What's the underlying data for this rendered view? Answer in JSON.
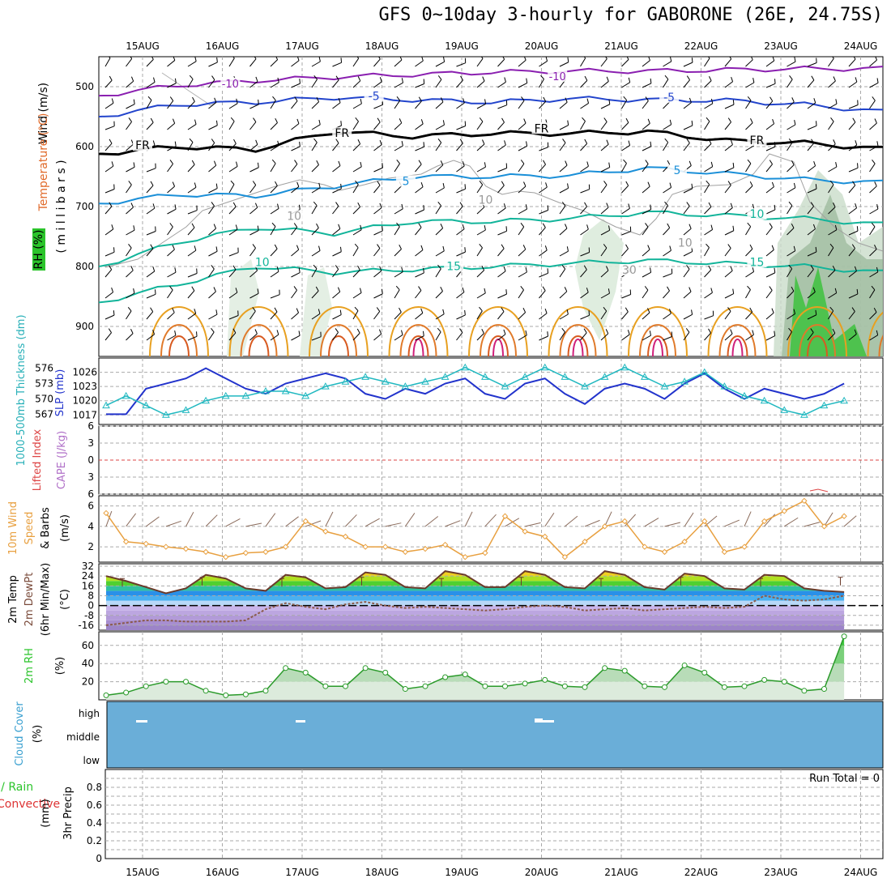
{
  "title": "GFS 0~10day 3-hourly for GABORONE (26E, 24.75S)",
  "dates": [
    "15AUG",
    "16AUG",
    "17AUG",
    "18AUG",
    "19AUG",
    "20AUG",
    "21AUG",
    "22AUG",
    "23AUG",
    "24AUG"
  ],
  "colors": {
    "temp_purple": "#8a1fb0",
    "temp_blue": "#2244cc",
    "temp_black": "#000000",
    "temp_sky": "#1a8fd8",
    "temp_teal": "#12b49a",
    "temp_orange": "#e8a020",
    "rh_green": "#2bc42b",
    "cloud_blue": "#6aaed8",
    "thickness": "#2233cc",
    "slp": "#20b8c0",
    "wind10": "#e8a040",
    "lifted": "#dd4444"
  },
  "chart_data": [
    {
      "type": "contour",
      "panel": "upper-air",
      "ylabels": {
        "rh": "RH (%)",
        "temp": "Temperature (°C)",
        "wind": "Wind (m/s)",
        "axis": "( m i l l i b a r s )"
      },
      "ylim": [
        950,
        450
      ],
      "yticks": [
        500,
        600,
        700,
        800,
        900
      ],
      "contour_labels": [
        {
          "text": "-10",
          "level": -10,
          "day": 1.1,
          "p": 497
        },
        {
          "text": "-10",
          "level": -10,
          "day": 5.2,
          "p": 485
        },
        {
          "text": "-5",
          "level": -5,
          "day": 2.9,
          "p": 518
        },
        {
          "text": "-5",
          "level": -5,
          "day": 6.6,
          "p": 520
        },
        {
          "text": "FR",
          "level": 0,
          "day": 0.0,
          "p": 600
        },
        {
          "text": "FR",
          "level": 0,
          "day": 2.5,
          "p": 580
        },
        {
          "text": "FR",
          "level": 0,
          "day": 5.0,
          "p": 572
        },
        {
          "text": "FR",
          "level": 0,
          "day": 7.7,
          "p": 592
        },
        {
          "text": "5",
          "level": 5,
          "day": 3.3,
          "p": 660
        },
        {
          "text": "5",
          "level": 5,
          "day": 6.7,
          "p": 642
        },
        {
          "text": "10",
          "level": 10,
          "day": 1.5,
          "p": 795
        },
        {
          "text": "10",
          "level": 10,
          "day": 7.7,
          "p": 715
        },
        {
          "text": "15",
          "level": 15,
          "day": 3.9,
          "p": 802
        },
        {
          "text": "15",
          "level": 15,
          "day": 7.7,
          "p": 795
        },
        {
          "text": "10",
          "level": 10,
          "day": 4.3,
          "p": 691
        },
        {
          "text": "10",
          "level": 10,
          "day": 1.9,
          "p": 718
        },
        {
          "text": "30",
          "level": 30,
          "day": 6.1,
          "p": 808
        },
        {
          "text": "10",
          "level": 10,
          "day": 6.8,
          "p": 763
        }
      ],
      "temperature_isotherms": [
        {
          "level": -10,
          "p": [
            515,
            498,
            490,
            484,
            480,
            476,
            474,
            474,
            472,
            470,
            470
          ]
        },
        {
          "level": -5,
          "p": [
            550,
            530,
            526,
            518,
            522,
            526,
            520,
            522,
            523,
            530,
            542
          ]
        },
        {
          "level": 0,
          "p": [
            612,
            600,
            605,
            575,
            583,
            578,
            578,
            575,
            590,
            594,
            604
          ]
        },
        {
          "level": 5,
          "p": [
            695,
            680,
            682,
            666,
            650,
            650,
            648,
            636,
            645,
            655,
            660
          ]
        },
        {
          "level": 10,
          "p": [
            800,
            760,
            735,
            745,
            725,
            725,
            720,
            710,
            715,
            720,
            730
          ]
        },
        {
          "level": 15,
          "p": [
            860,
            830,
            800,
            810,
            805,
            800,
            795,
            790,
            795,
            800,
            810
          ]
        }
      ]
    },
    {
      "type": "line",
      "panel": "thickness-slp",
      "ylabels": {
        "thick": "1000-500mb Thickness (dm)",
        "slp": "SLP (mb)"
      },
      "ylim_left": [
        565,
        578
      ],
      "yticks_left": [
        567,
        570,
        573,
        576
      ],
      "ylim_right": [
        1015,
        1029
      ],
      "yticks_right": [
        1017,
        1020,
        1023,
        1026
      ],
      "x_day": [
        0,
        0.25,
        0.5,
        0.75,
        1,
        1.25,
        1.5,
        1.75,
        2,
        2.25,
        2.5,
        2.75,
        3,
        3.25,
        3.5,
        3.75,
        4,
        4.25,
        4.5,
        4.75,
        5,
        5.25,
        5.5,
        5.75,
        6,
        6.25,
        6.5,
        6.75,
        7,
        7.25,
        7.5,
        7.75,
        8,
        8.25,
        8.5,
        8.75,
        9,
        9.25
      ],
      "series": [
        {
          "name": "",
          "axis": "left",
          "values": [
            567,
            567,
            572,
            573,
            574,
            576,
            574,
            572,
            571,
            573,
            574,
            575,
            574,
            571,
            570,
            572,
            571,
            573,
            574,
            571,
            570,
            573,
            574,
            571,
            569,
            572,
            573,
            572,
            570,
            573,
            575,
            572,
            570,
            572,
            571,
            570,
            571,
            573
          ]
        },
        {
          "name": "",
          "axis": "right",
          "values": [
            1019,
            1021,
            1019,
            1017,
            1018,
            1020,
            1021,
            1021,
            1022,
            1022,
            1021,
            1023,
            1024,
            1025,
            1024,
            1023,
            1024,
            1025,
            1027,
            1025,
            1023,
            1025,
            1027,
            1025,
            1023,
            1025,
            1027,
            1025,
            1023,
            1024,
            1026,
            1023,
            1021,
            1020,
            1018,
            1017,
            1019,
            1020
          ]
        }
      ]
    },
    {
      "type": "line",
      "panel": "cape",
      "ylabels": {
        "li": "Lifted Index",
        "cape": "CAPE (J/kg)"
      },
      "ylim": [
        -6,
        6
      ],
      "yticks": [
        -6,
        -3,
        0,
        3,
        6
      ],
      "tick_labels": [
        "6",
        "3",
        "0",
        "3",
        "6"
      ]
    },
    {
      "type": "line",
      "panel": "wind10",
      "ylabels": {
        "name": "10m Wind",
        "speed": "Speed",
        "barbs": "& Barbs",
        "unit": "(m/s)"
      },
      "ylim": [
        0.5,
        7
      ],
      "yticks": [
        2,
        4,
        6
      ],
      "x_day": [
        0,
        0.25,
        0.5,
        0.75,
        1,
        1.25,
        1.5,
        1.75,
        2,
        2.25,
        2.5,
        2.75,
        3,
        3.25,
        3.5,
        3.75,
        4,
        4.25,
        4.5,
        4.75,
        5,
        5.25,
        5.5,
        5.75,
        6,
        6.25,
        6.5,
        6.75,
        7,
        7.25,
        7.5,
        7.75,
        8,
        8.25,
        8.5,
        8.75,
        9,
        9.25
      ],
      "values": [
        5.3,
        2.5,
        2.3,
        2.0,
        1.8,
        1.5,
        1.0,
        1.4,
        1.5,
        2.0,
        4.5,
        3.5,
        3.0,
        2.0,
        2.0,
        1.5,
        1.8,
        2.2,
        1.0,
        1.4,
        5.0,
        3.5,
        3.0,
        1.0,
        2.5,
        4.0,
        4.5,
        2.0,
        1.5,
        2.5,
        4.5,
        1.5,
        2.0,
        4.5,
        5.5,
        6.5,
        4.0,
        5.0
      ]
    },
    {
      "type": "area",
      "panel": "temp2m",
      "ylabels": {
        "t": "2m Temp",
        "td": "2m DewPt",
        "mm": "(6hr Min/Max)",
        "unit": "(°C)"
      },
      "ylim": [
        -20,
        34
      ],
      "yticks": [
        -16,
        -8,
        0,
        8,
        16,
        24,
        32
      ],
      "x_day": [
        0,
        0.25,
        0.5,
        0.75,
        1,
        1.25,
        1.5,
        1.75,
        2,
        2.25,
        2.5,
        2.75,
        3,
        3.25,
        3.5,
        3.75,
        4,
        4.25,
        4.5,
        4.75,
        5,
        5.25,
        5.5,
        5.75,
        6,
        6.25,
        6.5,
        6.75,
        7,
        7.25,
        7.5,
        7.75,
        8,
        8.25,
        8.5,
        8.75,
        9,
        9.25
      ],
      "temp": [
        24,
        20,
        15,
        10,
        14,
        25,
        22,
        14,
        12,
        25,
        23,
        14,
        15,
        27,
        25,
        15,
        14,
        28,
        25,
        15,
        15,
        28,
        25,
        15,
        14,
        28,
        25,
        15,
        13,
        26,
        24,
        14,
        13,
        25,
        24,
        14,
        12,
        11
      ],
      "dewpt": [
        -16,
        -14,
        -12,
        -12,
        -13,
        -13,
        -13,
        -12,
        -3,
        2,
        -1,
        -3,
        1,
        3,
        0,
        -2,
        -1,
        -2,
        -3,
        -4,
        -3,
        -1,
        0,
        -1,
        -4,
        -3,
        -2,
        -4,
        -3,
        -2,
        -1,
        -2,
        -1,
        8,
        5,
        4,
        5,
        8
      ]
    },
    {
      "type": "area",
      "panel": "rh2m",
      "ylabels": {
        "name": "2m RH",
        "unit": "(%)"
      },
      "ylim": [
        0,
        75
      ],
      "yticks": [
        20,
        40,
        60
      ],
      "x_day": [
        0,
        0.25,
        0.5,
        0.75,
        1,
        1.25,
        1.5,
        1.75,
        2,
        2.25,
        2.5,
        2.75,
        3,
        3.25,
        3.5,
        3.75,
        4,
        4.25,
        4.5,
        4.75,
        5,
        5.25,
        5.5,
        5.75,
        6,
        6.25,
        6.5,
        6.75,
        7,
        7.25,
        7.5,
        7.75,
        8,
        8.25,
        8.5,
        8.75,
        9,
        9.25
      ],
      "values": [
        5,
        8,
        15,
        20,
        20,
        10,
        5,
        6,
        10,
        35,
        30,
        15,
        15,
        35,
        30,
        12,
        15,
        25,
        28,
        15,
        15,
        18,
        22,
        15,
        14,
        35,
        32,
        15,
        14,
        38,
        30,
        14,
        15,
        22,
        20,
        10,
        12,
        70
      ]
    },
    {
      "type": "heatmap",
      "panel": "cloud",
      "ylabels": {
        "name": "Cloud Cover",
        "unit": "(%)"
      },
      "levels": [
        "high",
        "middle",
        "low"
      ]
    },
    {
      "type": "bar",
      "panel": "precip",
      "ylabels": {
        "lbl1": "Total / Rain",
        "lbl2": "Convective",
        "name": "3hr Precip",
        "unit": "(mm)"
      },
      "ylim": [
        0,
        1
      ],
      "yticks": [
        0,
        0.2,
        0.4,
        0.6,
        0.8
      ],
      "tick_labels": [
        "0",
        "0.2",
        "0.4",
        "0.6",
        "0.8"
      ],
      "run_total": "Run Total = 0",
      "values": [
        0,
        0,
        0,
        0,
        0,
        0,
        0,
        0,
        0,
        0
      ]
    }
  ]
}
